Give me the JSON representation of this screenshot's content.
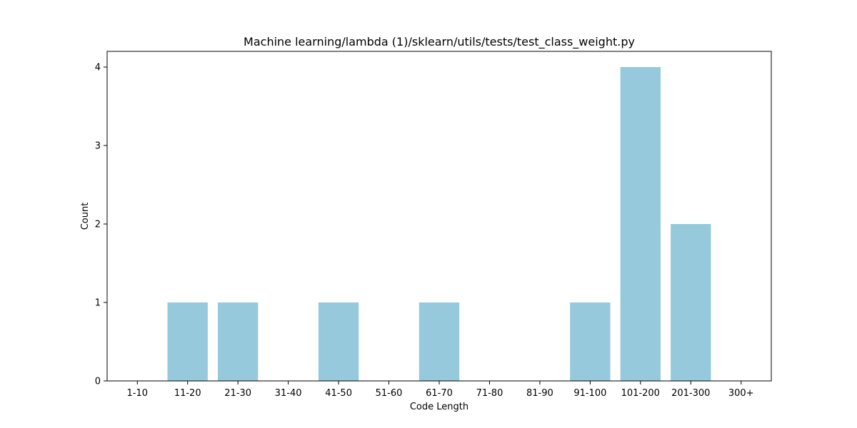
{
  "chart_data": {
    "type": "bar",
    "title": "Machine learning/lambda (1)/sklearn/utils/tests/test_class_weight.py",
    "xlabel": "Code Length",
    "ylabel": "Count",
    "categories": [
      "1-10",
      "11-20",
      "21-30",
      "31-40",
      "41-50",
      "51-60",
      "61-70",
      "71-80",
      "81-90",
      "91-100",
      "101-200",
      "201-300",
      "300+"
    ],
    "values": [
      0,
      1,
      1,
      0,
      1,
      0,
      1,
      0,
      0,
      1,
      4,
      2,
      0
    ],
    "ylim": [
      0,
      4.2
    ],
    "yticks": [
      0,
      1,
      2,
      3,
      4
    ],
    "bar_color": "#96c9dc",
    "grid": false,
    "legend": "none"
  }
}
